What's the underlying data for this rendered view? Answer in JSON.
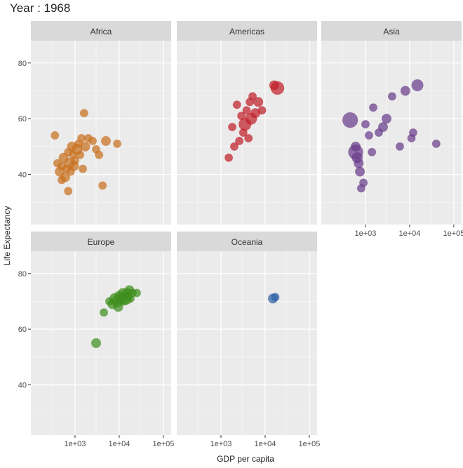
{
  "chart_data": {
    "type": "scatter",
    "title": "Year : 1968",
    "xlabel": "GDP per capita",
    "ylabel": "Life Expectancy",
    "x_scale": "log10",
    "xlim": [
      100,
      150000
    ],
    "ylim": [
      22,
      88
    ],
    "x_ticks": [
      1000,
      10000,
      100000
    ],
    "x_tick_labels": [
      "1e+03",
      "1e+04",
      "1e+05"
    ],
    "y_ticks": [
      40,
      60,
      80
    ],
    "y_tick_labels": [
      "40",
      "60",
      "80"
    ],
    "panel_background": "#ebebeb",
    "strip_background": "#d9d9d9",
    "grid_color": "#ffffff",
    "facets": [
      {
        "name": "Africa",
        "color": "#c8701f",
        "points": [
          {
            "gdp": 350,
            "life": 54,
            "pop": 1
          },
          {
            "gdp": 400,
            "life": 44,
            "pop": 1
          },
          {
            "gdp": 450,
            "life": 41,
            "pop": 2
          },
          {
            "gdp": 500,
            "life": 43,
            "pop": 1
          },
          {
            "gdp": 550,
            "life": 46,
            "pop": 2
          },
          {
            "gdp": 600,
            "life": 39,
            "pop": 2
          },
          {
            "gdp": 650,
            "life": 42,
            "pop": 1
          },
          {
            "gdp": 700,
            "life": 48,
            "pop": 1
          },
          {
            "gdp": 750,
            "life": 44,
            "pop": 3
          },
          {
            "gdp": 800,
            "life": 41,
            "pop": 1
          },
          {
            "gdp": 850,
            "life": 50,
            "pop": 2
          },
          {
            "gdp": 900,
            "life": 47,
            "pop": 1
          },
          {
            "gdp": 950,
            "life": 43,
            "pop": 2
          },
          {
            "gdp": 1000,
            "life": 45,
            "pop": 1
          },
          {
            "gdp": 1100,
            "life": 49,
            "pop": 3
          },
          {
            "gdp": 1200,
            "life": 51,
            "pop": 1
          },
          {
            "gdp": 1300,
            "life": 47,
            "pop": 1
          },
          {
            "gdp": 1400,
            "life": 53,
            "pop": 1
          },
          {
            "gdp": 1500,
            "life": 42,
            "pop": 1
          },
          {
            "gdp": 1700,
            "life": 50,
            "pop": 2
          },
          {
            "gdp": 2000,
            "life": 53,
            "pop": 1
          },
          {
            "gdp": 2500,
            "life": 52,
            "pop": 1
          },
          {
            "gdp": 3000,
            "life": 49,
            "pop": 1
          },
          {
            "gdp": 3500,
            "life": 47,
            "pop": 1
          },
          {
            "gdp": 4200,
            "life": 36,
            "pop": 1
          },
          {
            "gdp": 5000,
            "life": 52,
            "pop": 2
          },
          {
            "gdp": 700,
            "life": 34,
            "pop": 1
          },
          {
            "gdp": 1600,
            "life": 62,
            "pop": 1
          },
          {
            "gdp": 9000,
            "life": 51,
            "pop": 1
          },
          {
            "gdp": 500,
            "life": 38,
            "pop": 1
          }
        ]
      },
      {
        "name": "Americas",
        "color": "#c0202a",
        "points": [
          {
            "gdp": 1500,
            "life": 46,
            "pop": 1
          },
          {
            "gdp": 1800,
            "life": 57,
            "pop": 1
          },
          {
            "gdp": 2000,
            "life": 50,
            "pop": 1
          },
          {
            "gdp": 2300,
            "life": 65,
            "pop": 1
          },
          {
            "gdp": 2600,
            "life": 52,
            "pop": 1
          },
          {
            "gdp": 2900,
            "life": 61,
            "pop": 1
          },
          {
            "gdp": 3200,
            "life": 55,
            "pop": 1
          },
          {
            "gdp": 3500,
            "life": 58,
            "pop": 5
          },
          {
            "gdp": 3800,
            "life": 63,
            "pop": 1
          },
          {
            "gdp": 4200,
            "life": 53,
            "pop": 1
          },
          {
            "gdp": 4500,
            "life": 66,
            "pop": 1
          },
          {
            "gdp": 4800,
            "life": 60,
            "pop": 4
          },
          {
            "gdp": 5200,
            "life": 68,
            "pop": 1
          },
          {
            "gdp": 6000,
            "life": 62,
            "pop": 2
          },
          {
            "gdp": 7000,
            "life": 66,
            "pop": 2
          },
          {
            "gdp": 8500,
            "life": 63,
            "pop": 1
          },
          {
            "gdp": 16000,
            "life": 72,
            "pop": 2
          },
          {
            "gdp": 19000,
            "life": 71,
            "pop": 6
          }
        ]
      },
      {
        "name": "Asia",
        "color": "#6a3d8a",
        "points": [
          {
            "gdp": 450,
            "life": 59.5,
            "pop": 9
          },
          {
            "gdp": 600,
            "life": 48,
            "pop": 8
          },
          {
            "gdp": 650,
            "life": 46,
            "pop": 3
          },
          {
            "gdp": 700,
            "life": 44,
            "pop": 2
          },
          {
            "gdp": 750,
            "life": 41,
            "pop": 2
          },
          {
            "gdp": 800,
            "life": 35,
            "pop": 1
          },
          {
            "gdp": 900,
            "life": 37,
            "pop": 1
          },
          {
            "gdp": 1000,
            "life": 58,
            "pop": 1
          },
          {
            "gdp": 1200,
            "life": 54,
            "pop": 1
          },
          {
            "gdp": 1500,
            "life": 64,
            "pop": 1
          },
          {
            "gdp": 2000,
            "life": 55,
            "pop": 1
          },
          {
            "gdp": 2500,
            "life": 57,
            "pop": 2
          },
          {
            "gdp": 3000,
            "life": 60,
            "pop": 2
          },
          {
            "gdp": 4000,
            "life": 68,
            "pop": 1
          },
          {
            "gdp": 6000,
            "life": 50,
            "pop": 1
          },
          {
            "gdp": 8000,
            "life": 70,
            "pop": 2
          },
          {
            "gdp": 12000,
            "life": 55,
            "pop": 1
          },
          {
            "gdp": 15000,
            "life": 72,
            "pop": 4
          },
          {
            "gdp": 11000,
            "life": 53,
            "pop": 1
          },
          {
            "gdp": 40000,
            "life": 51,
            "pop": 1
          },
          {
            "gdp": 600,
            "life": 50,
            "pop": 2
          },
          {
            "gdp": 1400,
            "life": 48,
            "pop": 1
          }
        ]
      },
      {
        "name": "Europe",
        "color": "#3e8f1f",
        "points": [
          {
            "gdp": 3000,
            "life": 55,
            "pop": 2
          },
          {
            "gdp": 4500,
            "life": 66,
            "pop": 1
          },
          {
            "gdp": 7000,
            "life": 69,
            "pop": 2
          },
          {
            "gdp": 8000,
            "life": 71,
            "pop": 3
          },
          {
            "gdp": 9000,
            "life": 70,
            "pop": 4
          },
          {
            "gdp": 10000,
            "life": 72,
            "pop": 2
          },
          {
            "gdp": 11000,
            "life": 71,
            "pop": 3
          },
          {
            "gdp": 12000,
            "life": 73,
            "pop": 2
          },
          {
            "gdp": 13000,
            "life": 70,
            "pop": 1
          },
          {
            "gdp": 14000,
            "life": 71,
            "pop": 5
          },
          {
            "gdp": 15000,
            "life": 73,
            "pop": 2
          },
          {
            "gdp": 16000,
            "life": 72,
            "pop": 1
          },
          {
            "gdp": 17000,
            "life": 74,
            "pop": 2
          },
          {
            "gdp": 18000,
            "life": 71,
            "pop": 1
          },
          {
            "gdp": 20000,
            "life": 73,
            "pop": 1
          },
          {
            "gdp": 9500,
            "life": 68,
            "pop": 2
          },
          {
            "gdp": 6000,
            "life": 70,
            "pop": 1
          },
          {
            "gdp": 25000,
            "life": 73,
            "pop": 1
          }
        ]
      },
      {
        "name": "Oceania",
        "color": "#2e62a8",
        "points": [
          {
            "gdp": 15000,
            "life": 71,
            "pop": 2
          },
          {
            "gdp": 17000,
            "life": 71.5,
            "pop": 1
          }
        ]
      }
    ]
  }
}
